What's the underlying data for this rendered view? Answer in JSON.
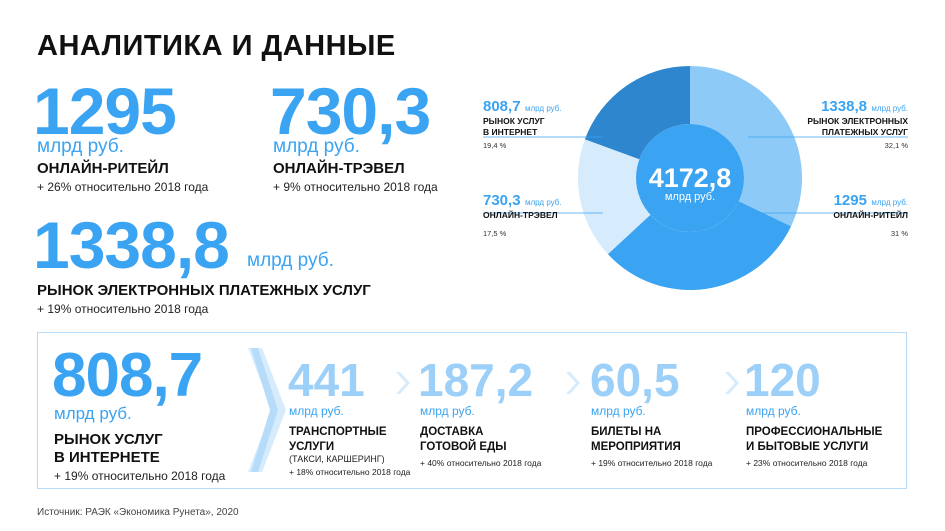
{
  "title": "АНАЛИТИКА И ДАННЫЕ",
  "metrics": [
    {
      "value": "1295",
      "unit": "млрд руб.",
      "label": "ОНЛАЙН-РИТЕЙЛ",
      "note": "+ 26% относительно 2018 года"
    },
    {
      "value": "730,3",
      "unit": "млрд руб.",
      "label": "ОНЛАЙН-ТРЭВЕЛ",
      "note": "+ 9% относительно 2018 года"
    },
    {
      "value": "1338,8",
      "unit": "млрд руб.",
      "label": "РЫНОК ЭЛЕКТРОННЫХ ПЛАТЕЖНЫХ УСЛУГ",
      "note": "+ 19% относительно 2018 года"
    }
  ],
  "donut": {
    "total": "4172,8",
    "total_unit": "млрд руб.",
    "segments": [
      {
        "value": "808,7",
        "unit": "млрд руб.",
        "label_line1": "РЫНОК УСЛУГ",
        "label_line2": "В ИНТЕРНЕТ",
        "pct": "19,4 %",
        "share": 19.4,
        "color": "#2e86cf"
      },
      {
        "value": "1338,8",
        "unit": "млрд руб.",
        "label_line1": "РЫНОК ЭЛЕКТРОННЫХ",
        "label_line2": "ПЛАТЕЖНЫХ УСЛУГ",
        "pct": "32,1 %",
        "share": 32.1,
        "color": "#8ecaf8"
      },
      {
        "value": "1295",
        "unit": "млрд руб.",
        "label_line1": "ОНЛАЙН-РИТЕЙЛ",
        "label_line2": "",
        "pct": "31 %",
        "share": 31,
        "color": "#3aa3f2"
      },
      {
        "value": "730,3",
        "unit": "млрд руб.",
        "label_line1": "ОНЛАЙН-ТРЭВЕЛ",
        "label_line2": "",
        "pct": "17,5 %",
        "share": 17.5,
        "color": "#d6ecfd"
      }
    ]
  },
  "services": {
    "main": {
      "value": "808,7",
      "unit": "млрд руб.",
      "label_line1": "РЫНОК УСЛУГ",
      "label_line2": "В ИНТЕРНЕТЕ",
      "note": "+ 19% относительно 2018 года"
    },
    "items": [
      {
        "value": "441",
        "unit": "млрд руб.",
        "label_line1": "ТРАНСПОРТНЫЕ",
        "label_line2": "УСЛУГИ",
        "sub": "(ТАКСИ, КАРШЕРИНГ)",
        "note": "+ 18% относительно 2018 года"
      },
      {
        "value": "187,2",
        "unit": "млрд руб.",
        "label_line1": "ДОСТАВКА",
        "label_line2": "ГОТОВОЙ ЕДЫ",
        "sub": "",
        "note": "+ 40% относительно 2018 года"
      },
      {
        "value": "60,5",
        "unit": "млрд руб.",
        "label_line1": "БИЛЕТЫ НА",
        "label_line2": "МЕРОПРИЯТИЯ",
        "sub": "",
        "note": "+ 19% относительно 2018 года"
      },
      {
        "value": "120",
        "unit": "млрд руб.",
        "label_line1": "ПРОФЕССИОНАЛЬНЫЕ",
        "label_line2": "И БЫТОВЫЕ УСЛУГИ",
        "sub": "",
        "note": "+ 23% относительно 2018 года"
      }
    ]
  },
  "source": "Источник: РАЭК «Экономика Рунета», 2020",
  "colors": {
    "accent": "#3aa3f2",
    "light_accent": "#9dd0f8",
    "border": "#b6dcfa"
  }
}
